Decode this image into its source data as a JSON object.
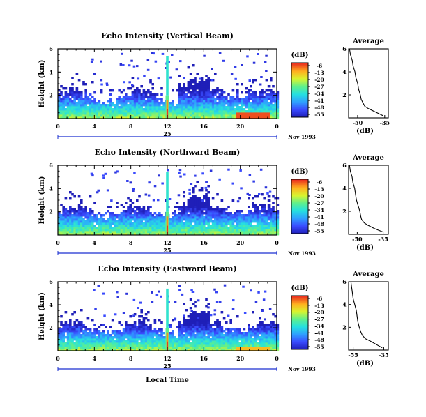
{
  "chart_data": {
    "type": "heatmap",
    "panels": [
      {
        "title": "Echo Intensity (Vertical Beam)",
        "ylabel": "Height (km)",
        "ylim": [
          0,
          6
        ],
        "yticks": [
          "2",
          "4",
          "6"
        ],
        "xticks": [
          "0",
          "4",
          "8",
          "12",
          "16",
          "20",
          "0"
        ],
        "xlim": [
          0,
          24
        ],
        "date_mark": "25",
        "date_label": "Nov 1993",
        "colorbar_unit": "(dB)",
        "colorbar_ticks": [
          "-6",
          "-13",
          "-20",
          "-27",
          "-34",
          "-41",
          "-48",
          "-55"
        ],
        "average_title": "Average",
        "average_xlabel": "(dB)",
        "average_xticks": [
          "-50",
          "-35"
        ],
        "average_xlim": [
          -55,
          -33
        ],
        "average_profile": {
          "height": [
            0.2,
            0.5,
            0.8,
            1.0,
            1.3,
            1.6,
            2.0,
            2.5,
            3.0,
            3.5,
            4.0,
            4.5,
            5.0,
            5.5,
            6.0
          ],
          "db": [
            -36,
            -40,
            -44,
            -46,
            -47,
            -48,
            -48.5,
            -49.5,
            -50,
            -51,
            -51.5,
            -52.5,
            -53,
            -54,
            -54.5
          ]
        },
        "spike_hour": 12
      },
      {
        "title": "Echo Intensity (Northward Beam)",
        "ylabel": "Height (km)",
        "ylim": [
          0,
          6
        ],
        "yticks": [
          "2",
          "4",
          "6"
        ],
        "xticks": [
          "0",
          "4",
          "8",
          "12",
          "16",
          "20",
          "0"
        ],
        "xlim": [
          0,
          24
        ],
        "date_mark": "25",
        "date_label": "Nov 1993",
        "colorbar_unit": "(dB)",
        "colorbar_ticks": [
          "-6",
          "-13",
          "-20",
          "-27",
          "-34",
          "-41",
          "-48",
          "-55"
        ],
        "average_title": "Average",
        "average_xlabel": "(dB)",
        "average_xticks": [
          "-50",
          "-35"
        ],
        "average_xlim": [
          -55,
          -32
        ],
        "average_profile": {
          "height": [
            0.2,
            0.5,
            0.8,
            1.0,
            1.3,
            1.6,
            2.0,
            2.5,
            3.0,
            3.5,
            4.0,
            4.5,
            5.0,
            5.5,
            6.0
          ],
          "db": [
            -35,
            -40,
            -44,
            -46,
            -47.5,
            -48,
            -48.5,
            -49.5,
            -50.5,
            -51,
            -51.5,
            -52.5,
            -53,
            -54,
            -54.5
          ]
        },
        "spike_hour": 12
      },
      {
        "title": "Echo Intensity (Eastward Beam)",
        "ylabel": "Height (km)",
        "ylim": [
          0,
          6
        ],
        "yticks": [
          "2",
          "4",
          "6"
        ],
        "xticks": [
          "0",
          "4",
          "8",
          "12",
          "16",
          "20",
          "0"
        ],
        "xlim": [
          0,
          24
        ],
        "date_mark": "25",
        "date_label": "Nov 1993",
        "colorbar_unit": "(dB)",
        "colorbar_ticks": [
          "-6",
          "-13",
          "-20",
          "-27",
          "-34",
          "-41",
          "-48",
          "-55"
        ],
        "average_title": "Average",
        "average_xlabel": "(dB)",
        "average_xticks": [
          "-55",
          "-35"
        ],
        "average_xlim": [
          -58,
          -32
        ],
        "average_profile": {
          "height": [
            0.2,
            0.5,
            0.8,
            1.0,
            1.3,
            1.6,
            2.0,
            2.5,
            3.0,
            3.5,
            4.0,
            4.5,
            5.0,
            5.5,
            6.0
          ],
          "db": [
            -36,
            -40,
            -44,
            -47,
            -49,
            -50,
            -51,
            -52,
            -52.5,
            -53,
            -54,
            -55,
            -55.5,
            -56,
            -56.5
          ]
        },
        "spike_hour": 12
      }
    ],
    "xlabel": "Local Time"
  }
}
